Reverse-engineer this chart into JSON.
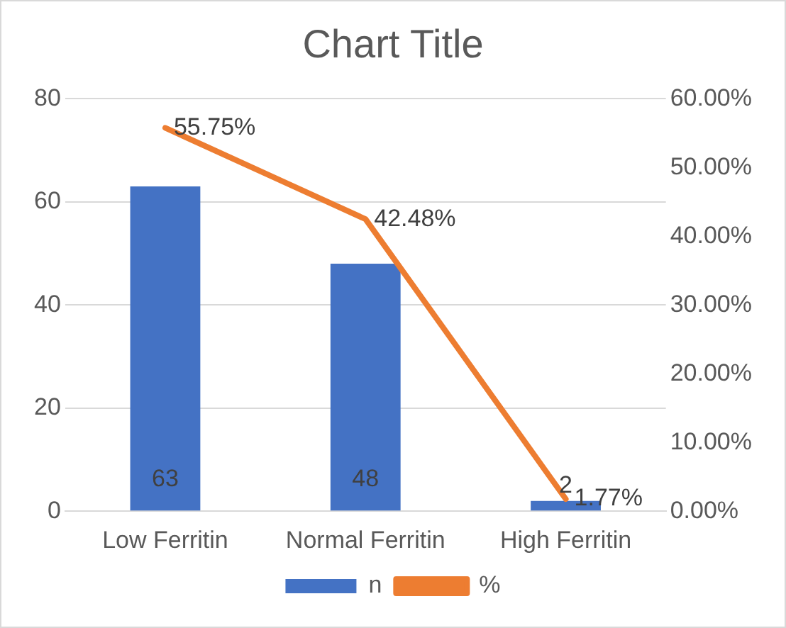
{
  "chart_data": {
    "type": "bar",
    "title": "Chart Title",
    "categories": [
      "Low Ferritin",
      "Normal Ferritin",
      "High Ferritin"
    ],
    "series": [
      {
        "name": "n",
        "color": "#4472c4",
        "values": [
          63,
          48,
          2
        ],
        "value_labels": [
          "63",
          "48",
          "2"
        ]
      },
      {
        "name": "%",
        "type": "line",
        "axis": "y2",
        "color": "#ed7d31",
        "values": [
          55.75,
          42.48,
          1.77
        ],
        "value_labels": [
          "55.75%",
          "42.48%",
          "1.77%"
        ]
      }
    ],
    "ylim": [
      0,
      80
    ],
    "yticks": [
      0,
      20,
      40,
      60,
      80
    ],
    "y2lim": [
      0,
      60
    ],
    "y2ticks": [
      {
        "value": 0,
        "label": "0.00%"
      },
      {
        "value": 10,
        "label": "10.00%"
      },
      {
        "value": 20,
        "label": "20.00%"
      },
      {
        "value": 30,
        "label": "30.00%"
      },
      {
        "value": 40,
        "label": "40.00%"
      },
      {
        "value": 50,
        "label": "50.00%"
      },
      {
        "value": 60,
        "label": "60.00%"
      }
    ],
    "grid": "y",
    "legend": "bottom",
    "marker": "none",
    "line_style": "solid"
  }
}
